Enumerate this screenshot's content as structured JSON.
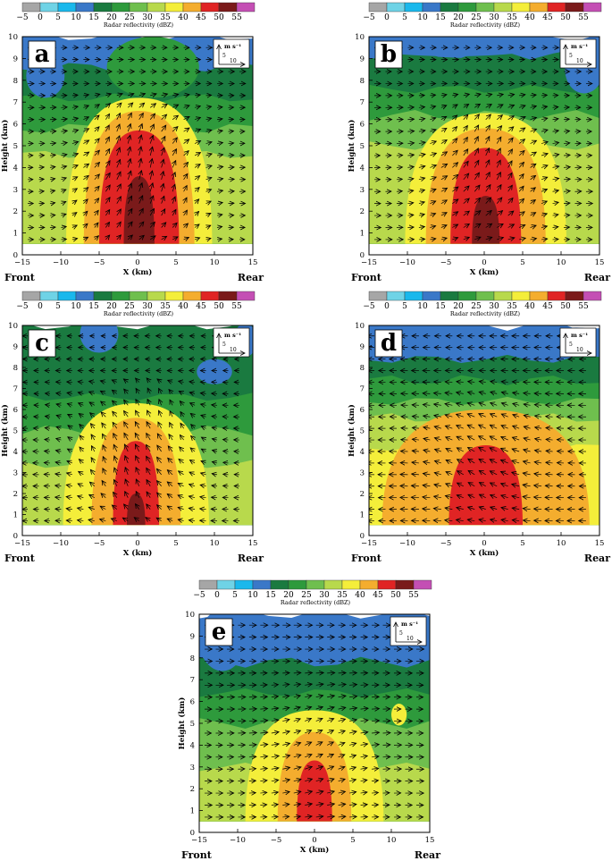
{
  "figure": {
    "colorbar_title": "Radar reflectivity (dBZ)",
    "colorbar_levels": [
      "−5",
      "0",
      "5",
      "10",
      "15",
      "20",
      "25",
      "30",
      "35",
      "40",
      "45",
      "50",
      "55"
    ],
    "colorbar_colors": [
      "#a6a6a6",
      "#6fd3e6",
      "#1ab8ec",
      "#3a78c8",
      "#1a7a40",
      "#2e9a3c",
      "#6fbf4e",
      "#b8d94c",
      "#f4ee3a",
      "#f4ad2e",
      "#e02424",
      "#7a1a1a",
      "#c44fb4"
    ],
    "vector_unit": "m s⁻¹",
    "vector_ref_vertical": "5",
    "vector_ref_horizontal": "10"
  },
  "panels": [
    {
      "letter": "a",
      "front_label": "Front",
      "rear_label": "Rear"
    },
    {
      "letter": "b",
      "front_label": "Front",
      "rear_label": "Rear"
    },
    {
      "letter": "c",
      "front_label": "Front",
      "rear_label": "Rear"
    },
    {
      "letter": "d",
      "front_label": "Front",
      "rear_label": "Rear"
    },
    {
      "letter": "e",
      "front_label": "Front",
      "rear_label": "Rear"
    }
  ],
  "chart_data": [
    {
      "type": "heatmap",
      "panel": "a",
      "xlabel": "X (km)",
      "ylabel": "Height (km)",
      "xlim": [
        -15,
        15
      ],
      "ylim": [
        0,
        10
      ],
      "x_ticks": [
        "−15",
        "−10",
        "−5",
        "0",
        "5",
        "10",
        "15"
      ],
      "y_ticks": [
        "0",
        "1",
        "2",
        "3",
        "4",
        "5",
        "6",
        "7",
        "8",
        "9",
        "10"
      ],
      "colorbar_label": "Radar reflectivity (dBZ)",
      "core_max_height_km": {
        "35": 7.2,
        "40": 6.6,
        "45": 5.7,
        "50": 3.6
      },
      "wind": "vectors tilted upward toward the rear aloft"
    },
    {
      "type": "heatmap",
      "panel": "b",
      "xlabel": "X (km)",
      "ylabel": "Height (km)",
      "xlim": [
        -15,
        15
      ],
      "ylim": [
        0,
        10
      ],
      "x_ticks": [
        "−15",
        "−10",
        "−5",
        "0",
        "5",
        "10",
        "15"
      ],
      "y_ticks": [
        "0",
        "1",
        "2",
        "3",
        "4",
        "5",
        "6",
        "7",
        "8",
        "9",
        "10"
      ],
      "colorbar_label": "Radar reflectivity (dBZ)",
      "core_max_height_km": {
        "35": 6.5,
        "40": 5.8,
        "45": 4.9,
        "50": 2.7
      },
      "wind": "mostly rearward vectors with upward tilt in core"
    },
    {
      "type": "heatmap",
      "panel": "c",
      "xlabel": "X (km)",
      "ylabel": "Height (km)",
      "xlim": [
        -15,
        15
      ],
      "ylim": [
        0,
        10
      ],
      "x_ticks": [
        "−15",
        "−10",
        "−5",
        "0",
        "5",
        "10",
        "15"
      ],
      "y_ticks": [
        "0",
        "1",
        "2",
        "3",
        "4",
        "5",
        "6",
        "7",
        "8",
        "9",
        "10"
      ],
      "colorbar_label": "Radar reflectivity (dBZ)",
      "core_max_height_km": {
        "35": 6.3,
        "40": 5.6,
        "45": 4.5,
        "50": 2.0
      },
      "wind": "frontward vectors at low levels, upward in core"
    },
    {
      "type": "heatmap",
      "panel": "d",
      "xlabel": "X (km)",
      "ylabel": "Height (km)",
      "xlim": [
        -15,
        15
      ],
      "ylim": [
        0,
        10
      ],
      "x_ticks": [
        "−15",
        "−10",
        "−5",
        "0",
        "5",
        "10",
        "15"
      ],
      "y_ticks": [
        "0",
        "1",
        "2",
        "3",
        "4",
        "5",
        "6",
        "7",
        "8",
        "9",
        "10"
      ],
      "colorbar_label": "Radar reflectivity (dBZ)",
      "core_max_height_km": {
        "35": 6.7,
        "40": 5.8,
        "45": 4.3
      },
      "wind": "strong frontward vectors at all levels"
    },
    {
      "type": "heatmap",
      "panel": "e",
      "xlabel": "X (km)",
      "ylabel": "Height (km)",
      "xlim": [
        -15,
        15
      ],
      "ylim": [
        0,
        10
      ],
      "x_ticks": [
        "−15",
        "−10",
        "−5",
        "0",
        "5",
        "10",
        "15"
      ],
      "y_ticks": [
        "0",
        "1",
        "2",
        "3",
        "4",
        "5",
        "6",
        "7",
        "8",
        "9",
        "10"
      ],
      "colorbar_label": "Radar reflectivity (dBZ)",
      "core_max_height_km": {
        "35": 5.6,
        "40": 4.6,
        "45": 3.3
      },
      "wind": "strong rearward vectors at all levels"
    }
  ]
}
